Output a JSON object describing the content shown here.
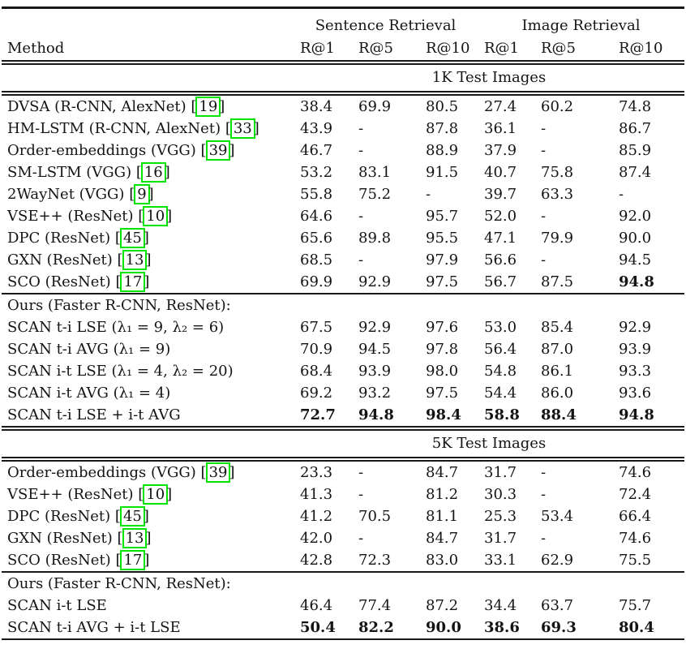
{
  "colors": {
    "citation_box_green": "#00e400",
    "rule": "#181818",
    "text": "#141414",
    "background": "#ffffff"
  },
  "citation_format": {
    "open": "[",
    "close": "]"
  },
  "table": {
    "header": {
      "method_label": "Method",
      "groups": [
        {
          "label": "Sentence Retrieval"
        },
        {
          "label": "Image Retrieval"
        }
      ],
      "metric_columns": [
        "R@1",
        "R@5",
        "R@10",
        "R@1",
        "R@5",
        "R@10"
      ]
    },
    "sections": [
      {
        "banner": "1K Test Images",
        "baseline_rows": [
          {
            "method": "DVSA (R-CNN, AlexNet)",
            "cite": "19",
            "values": [
              "38.4",
              "69.9",
              "80.5",
              "27.4",
              "60.2",
              "74.8"
            ],
            "bold": []
          },
          {
            "method": "HM-LSTM (R-CNN, AlexNet)",
            "cite": "33",
            "values": [
              "43.9",
              "-",
              "87.8",
              "36.1",
              "-",
              "86.7"
            ],
            "bold": []
          },
          {
            "method": "Order-embeddings (VGG)",
            "cite": "39",
            "values": [
              "46.7",
              "-",
              "88.9",
              "37.9",
              "-",
              "85.9"
            ],
            "bold": []
          },
          {
            "method": "SM-LSTM (VGG)",
            "cite": "16",
            "values": [
              "53.2",
              "83.1",
              "91.5",
              "40.7",
              "75.8",
              "87.4"
            ],
            "bold": []
          },
          {
            "method": "2WayNet (VGG)",
            "cite": "9",
            "values": [
              "55.8",
              "75.2",
              "-",
              "39.7",
              "63.3",
              "-"
            ],
            "bold": []
          },
          {
            "method": "VSE++ (ResNet)",
            "cite": "10",
            "values": [
              "64.6",
              "-",
              "95.7",
              "52.0",
              "-",
              "92.0"
            ],
            "bold": []
          },
          {
            "method": "DPC (ResNet)",
            "cite": "45",
            "values": [
              "65.6",
              "89.8",
              "95.5",
              "47.1",
              "79.9",
              "90.0"
            ],
            "bold": []
          },
          {
            "method": "GXN (ResNet)",
            "cite": "13",
            "values": [
              "68.5",
              "-",
              "97.9",
              "56.6",
              "-",
              "94.5"
            ],
            "bold": []
          },
          {
            "method": "SCO (ResNet)",
            "cite": "17",
            "values": [
              "69.9",
              "92.9",
              "97.5",
              "56.7",
              "87.5",
              "94.8"
            ],
            "bold": [
              5
            ]
          }
        ],
        "ours_subheader": "Ours (Faster R-CNN, ResNet):",
        "ours_rows": [
          {
            "method": "SCAN t-i LSE (λ₁ = 9, λ₂ = 6)",
            "cite": null,
            "values": [
              "67.5",
              "92.9",
              "97.6",
              "53.0",
              "85.4",
              "92.9"
            ],
            "bold": []
          },
          {
            "method": "SCAN t-i AVG (λ₁ = 9)",
            "cite": null,
            "values": [
              "70.9",
              "94.5",
              "97.8",
              "56.4",
              "87.0",
              "93.9"
            ],
            "bold": []
          },
          {
            "method": "SCAN i-t LSE (λ₁ = 4, λ₂ = 20)",
            "cite": null,
            "values": [
              "68.4",
              "93.9",
              "98.0",
              "54.8",
              "86.1",
              "93.3"
            ],
            "bold": []
          },
          {
            "method": "SCAN i-t AVG (λ₁ = 4)",
            "cite": null,
            "values": [
              "69.2",
              "93.2",
              "97.5",
              "54.4",
              "86.0",
              "93.6"
            ],
            "bold": []
          },
          {
            "method": "SCAN t-i LSE + i-t AVG",
            "cite": null,
            "values": [
              "72.7",
              "94.8",
              "98.4",
              "58.8",
              "88.4",
              "94.8"
            ],
            "bold": [
              0,
              1,
              2,
              3,
              4,
              5
            ]
          }
        ]
      },
      {
        "banner": "5K Test Images",
        "baseline_rows": [
          {
            "method": "Order-embeddings (VGG)",
            "cite": "39",
            "values": [
              "23.3",
              "-",
              "84.7",
              "31.7",
              "-",
              "74.6"
            ],
            "bold": []
          },
          {
            "method": "VSE++ (ResNet)",
            "cite": "10",
            "values": [
              "41.3",
              "-",
              "81.2",
              "30.3",
              "-",
              "72.4"
            ],
            "bold": []
          },
          {
            "method": "DPC (ResNet)",
            "cite": "45",
            "values": [
              "41.2",
              "70.5",
              "81.1",
              "25.3",
              "53.4",
              "66.4"
            ],
            "bold": []
          },
          {
            "method": "GXN (ResNet)",
            "cite": "13",
            "values": [
              "42.0",
              "-",
              "84.7",
              "31.7",
              "-",
              "74.6"
            ],
            "bold": []
          },
          {
            "method": "SCO (ResNet)",
            "cite": "17",
            "values": [
              "42.8",
              "72.3",
              "83.0",
              "33.1",
              "62.9",
              "75.5"
            ],
            "bold": []
          }
        ],
        "ours_subheader": "Ours (Faster R-CNN, ResNet):",
        "ours_rows": [
          {
            "method": "SCAN i-t LSE",
            "cite": null,
            "values": [
              "46.4",
              "77.4",
              "87.2",
              "34.4",
              "63.7",
              "75.7"
            ],
            "bold": []
          },
          {
            "method": "SCAN t-i AVG + i-t LSE",
            "cite": null,
            "values": [
              "50.4",
              "82.2",
              "90.0",
              "38.6",
              "69.3",
              "80.4"
            ],
            "bold": [
              0,
              1,
              2,
              3,
              4,
              5
            ]
          }
        ]
      }
    ]
  }
}
